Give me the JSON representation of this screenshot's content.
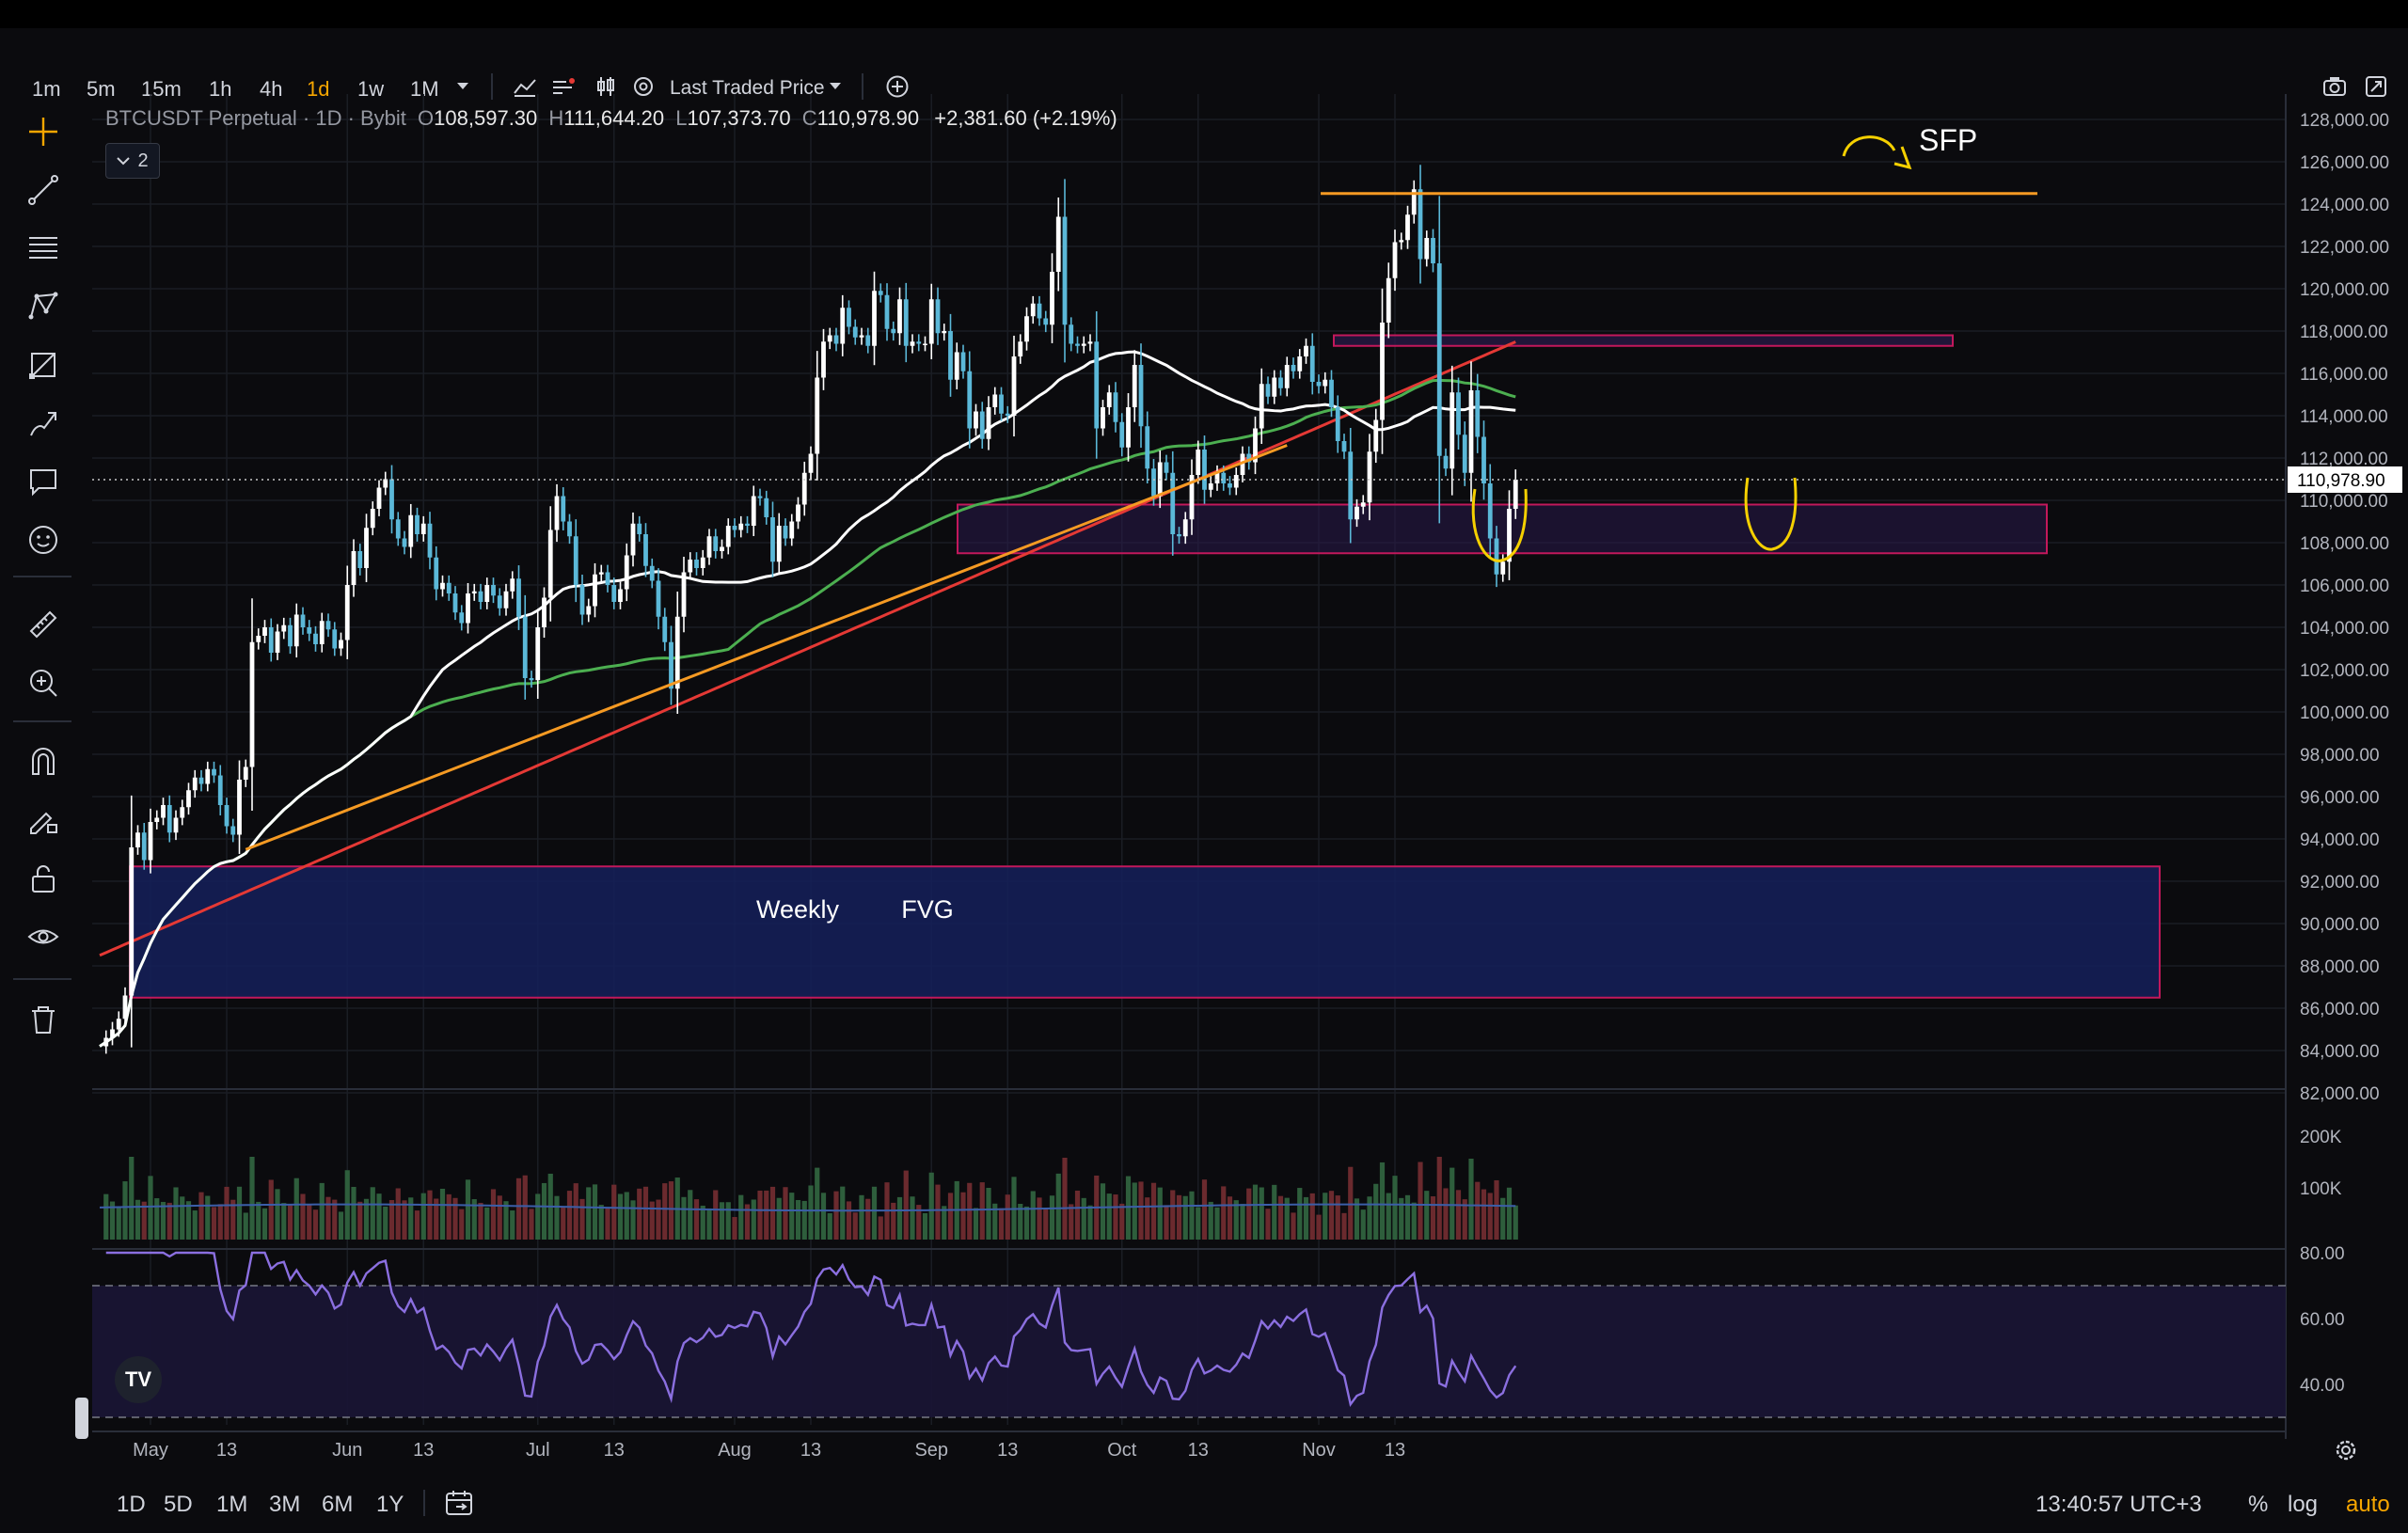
{
  "toolbar": {
    "timeframes": [
      "1m",
      "5m",
      "15m",
      "1h",
      "4h",
      "1d",
      "1w",
      "1M"
    ],
    "active_timeframe": "1d",
    "price_source_label": "Last Traded Price"
  },
  "legend": {
    "symbol": "BTCUSDT Perpetual · 1D · Bybit",
    "o_label": "O",
    "o": "108,597.30",
    "h_label": "H",
    "h": "111,644.20",
    "l_label": "L",
    "l": "107,373.70",
    "c_label": "C",
    "c": "110,978.90",
    "change": "+2,381.60 (+2.19%)",
    "indicator_count": "2"
  },
  "colors": {
    "background": "#0b0b0e",
    "candle_up": "#ffffff",
    "candle_down": "#5bb8d8",
    "ma_white": "#ffffff",
    "ma_green": "#4caf50",
    "ma_red": "#e53935",
    "trendline": "#f59a23",
    "resistance": "#f59a23",
    "zone_fill": "#2a1a4a",
    "zone_border": "#c2185b",
    "fvg_fill": "#15205a",
    "rsi_line": "#8b6fe0",
    "sfp_marker": "#f5d000"
  },
  "chart_data": {
    "type": "candlestick",
    "symbol": "BTCUSDT Perpetual",
    "interval": "1D",
    "exchange": "Bybit",
    "price_axis_ticks": [
      "128,000.00",
      "126,000.00",
      "124,000.00",
      "122,000.00",
      "120,000.00",
      "118,000.00",
      "116,000.00",
      "114,000.00",
      "112,000.00",
      "110,000.00",
      "108,000.00",
      "106,000.00",
      "104,000.00",
      "102,000.00",
      "100,000.00",
      "98,000.00",
      "96,000.00",
      "94,000.00",
      "92,000.00",
      "90,000.00",
      "88,000.00",
      "86,000.00",
      "84,000.00",
      "82,000.00"
    ],
    "ylim": [
      81000,
      128500
    ],
    "last_price_label": "110,978.90",
    "last_price": 110978.9,
    "x_ticks": [
      "May",
      "13",
      "Jun",
      "13",
      "Jul",
      "13",
      "Aug",
      "13",
      "Sep",
      "13",
      "Oct",
      "13",
      "Nov",
      "13"
    ],
    "x_tick_dates": [
      "2025-05-01",
      "2025-05-13",
      "2025-06-01",
      "2025-06-13",
      "2025-07-01",
      "2025-07-13",
      "2025-08-01",
      "2025-08-13",
      "2025-09-01",
      "2025-09-13",
      "2025-10-01",
      "2025-10-13",
      "2025-11-01",
      "2025-11-13"
    ],
    "closes": [
      84200,
      84600,
      85000,
      85500,
      86600,
      93600,
      94300,
      93000,
      94800,
      95000,
      95600,
      94300,
      95000,
      95500,
      96300,
      96900,
      96600,
      97300,
      97000,
      95600,
      94600,
      94200,
      96800,
      97400,
      103300,
      103600,
      104000,
      102800,
      103800,
      104100,
      103100,
      104600,
      104000,
      103700,
      103200,
      104300,
      103900,
      103000,
      103400,
      106000,
      107600,
      106800,
      108700,
      109600,
      110600,
      111000,
      109100,
      108200,
      107800,
      109300,
      108400,
      108900,
      107300,
      105800,
      106100,
      105600,
      104700,
      104200,
      105600,
      105700,
      105200,
      106000,
      105500,
      104900,
      105700,
      106300,
      104500,
      101600,
      101500,
      104000,
      105400,
      108600,
      110200,
      109000,
      108300,
      106000,
      104600,
      105000,
      106500,
      106600,
      106000,
      105200,
      105800,
      107400,
      108900,
      108400,
      106900,
      106200,
      104500,
      103300,
      101100,
      104500,
      106600,
      107200,
      106800,
      107300,
      108300,
      107600,
      107800,
      108800,
      108600,
      108900,
      108800,
      110200,
      110100,
      109200,
      107100,
      108800,
      108200,
      109000,
      109800,
      111300,
      112200,
      115800,
      117500,
      117800,
      117400,
      119100,
      118200,
      117700,
      117800,
      117300,
      119900,
      119700,
      118100,
      117900,
      119500,
      117300,
      117500,
      117400,
      117400,
      119500,
      117900,
      118000,
      115700,
      117000,
      116100,
      113400,
      114200,
      112900,
      114400,
      115000,
      114100,
      114000,
      116800,
      117500,
      118700,
      119300,
      118600,
      118300,
      120800,
      123400,
      118300,
      117400,
      117300,
      117400,
      117500,
      113400,
      114400,
      115100,
      113700,
      112500,
      114400,
      116400,
      113500,
      111500,
      110200,
      111800,
      111300,
      108400,
      108300,
      109100,
      111200,
      112400,
      110500,
      110800,
      111300,
      110800,
      110600,
      111200,
      112200,
      111800,
      113400,
      115500,
      114900,
      115800,
      115300,
      116400,
      116100,
      116800,
      117300,
      115600,
      115400,
      115700,
      114400,
      112800,
      112300,
      109100,
      109700,
      109900,
      112300,
      113800,
      118400,
      120500,
      122200,
      122300,
      123500,
      124700,
      121400,
      122400,
      121200,
      112100,
      111500,
      115100,
      113100,
      111300,
      115200,
      113000,
      110800,
      108200,
      106500,
      107100,
      109600,
      110979
    ],
    "moving_averages": [
      {
        "color": "#ffffff"
      },
      {
        "color": "#4caf50"
      },
      {
        "color": "#e53935"
      }
    ],
    "drawings": {
      "resistance_line": {
        "price": 124500
      },
      "trendline": {
        "from": {
          "date": "2025-05-16",
          "price": 93500
        },
        "to": {
          "date": "2025-10-27",
          "price": 112600
        }
      },
      "zone_upper": {
        "top": 117800,
        "bottom": 117300
      },
      "zone_lower": {
        "top": 109800,
        "bottom": 107500
      },
      "fvg_box": {
        "top": 92700,
        "bottom": 86500
      },
      "fvg_labels": [
        "Weekly",
        "FVG"
      ],
      "sfp_label": "SFP"
    },
    "volume_axis_ticks": [
      "200K",
      "100K"
    ],
    "rsi_axis_ticks": [
      "80.00",
      "60.00",
      "40.00"
    ],
    "rsi_levels": [
      70,
      30
    ]
  },
  "bottom": {
    "ranges": [
      "1D",
      "5D",
      "1M",
      "3M",
      "6M",
      "1Y"
    ],
    "time": "13:40:57 UTC+3",
    "percent": "%",
    "log": "log",
    "auto": "auto"
  },
  "logo_text": "TV"
}
